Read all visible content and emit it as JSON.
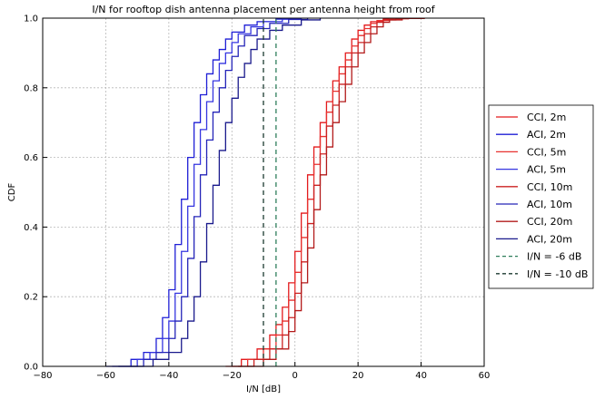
{
  "chart_data": {
    "type": "line",
    "title": "I/N for rooftop dish antenna placement per antenna height from roof",
    "xlabel": "I/N [dB]",
    "ylabel": "CDF",
    "xlim": [
      -80,
      60
    ],
    "ylim": [
      0,
      1.0
    ],
    "xticks": [
      -80,
      -60,
      -40,
      -20,
      0,
      20,
      40,
      60
    ],
    "yticks": [
      0.0,
      0.2,
      0.4,
      0.6,
      0.8,
      1.0
    ],
    "xtick_labels": [
      "−80",
      "−60",
      "−40",
      "−20",
      "0",
      "20",
      "40",
      "60"
    ],
    "ytick_labels": [
      "0.0",
      "0.2",
      "0.4",
      "0.6",
      "0.8",
      "1.0"
    ],
    "grid": true,
    "legend_position": "right-outside",
    "series": [
      {
        "name": "CCI, 2m",
        "color": "#e31a1c",
        "dash": false,
        "x": [
          -22,
          -17,
          -12,
          -8,
          -6,
          -4,
          -2,
          0,
          2,
          4,
          6,
          8,
          10,
          12,
          14,
          16,
          18,
          20,
          22,
          24,
          28,
          34
        ],
        "y": [
          0.0,
          0.02,
          0.05,
          0.09,
          0.12,
          0.17,
          0.24,
          0.33,
          0.44,
          0.55,
          0.63,
          0.7,
          0.76,
          0.82,
          0.86,
          0.9,
          0.94,
          0.965,
          0.98,
          0.99,
          0.997,
          1.0
        ]
      },
      {
        "name": "ACI, 2m",
        "color": "#1f1fd6",
        "dash": false,
        "x": [
          -60,
          -52,
          -48,
          -44,
          -42,
          -40,
          -38,
          -36,
          -34,
          -32,
          -30,
          -28,
          -26,
          -24,
          -22,
          -20,
          -16,
          -12,
          -6,
          0
        ],
        "y": [
          0.0,
          0.02,
          0.04,
          0.08,
          0.14,
          0.22,
          0.35,
          0.48,
          0.6,
          0.7,
          0.78,
          0.84,
          0.88,
          0.91,
          0.94,
          0.96,
          0.98,
          0.99,
          0.997,
          1.0
        ]
      },
      {
        "name": "CCI, 5m",
        "color": "#e8312f",
        "dash": false,
        "x": [
          -20,
          -15,
          -10,
          -6,
          -4,
          -2,
          0,
          2,
          4,
          6,
          8,
          10,
          12,
          14,
          16,
          18,
          20,
          22,
          24,
          26,
          30,
          36
        ],
        "y": [
          0.0,
          0.02,
          0.05,
          0.09,
          0.13,
          0.19,
          0.27,
          0.37,
          0.48,
          0.58,
          0.66,
          0.73,
          0.79,
          0.84,
          0.88,
          0.92,
          0.95,
          0.97,
          0.985,
          0.993,
          0.998,
          1.0
        ]
      },
      {
        "name": "ACI, 5m",
        "color": "#3535e0",
        "dash": false,
        "x": [
          -58,
          -50,
          -46,
          -42,
          -40,
          -38,
          -36,
          -34,
          -32,
          -30,
          -28,
          -26,
          -24,
          -22,
          -20,
          -18,
          -14,
          -10,
          -4,
          2
        ],
        "y": [
          0.0,
          0.02,
          0.04,
          0.08,
          0.13,
          0.21,
          0.33,
          0.46,
          0.58,
          0.68,
          0.76,
          0.82,
          0.87,
          0.9,
          0.93,
          0.955,
          0.975,
          0.99,
          0.997,
          1.0
        ]
      },
      {
        "name": "CCI, 10m",
        "color": "#cc2222",
        "dash": false,
        "x": [
          -18,
          -13,
          -8,
          -4,
          -2,
          0,
          2,
          4,
          6,
          8,
          10,
          12,
          14,
          16,
          18,
          20,
          22,
          24,
          26,
          28,
          32,
          38
        ],
        "y": [
          0.0,
          0.02,
          0.05,
          0.09,
          0.14,
          0.21,
          0.3,
          0.41,
          0.52,
          0.61,
          0.69,
          0.75,
          0.81,
          0.86,
          0.9,
          0.93,
          0.955,
          0.975,
          0.988,
          0.995,
          0.999,
          1.0
        ]
      },
      {
        "name": "ACI, 10m",
        "color": "#2424b8",
        "dash": false,
        "x": [
          -56,
          -48,
          -44,
          -40,
          -38,
          -36,
          -34,
          -32,
          -30,
          -28,
          -26,
          -24,
          -22,
          -20,
          -18,
          -16,
          -12,
          -8,
          -2,
          4
        ],
        "y": [
          0.0,
          0.02,
          0.04,
          0.08,
          0.13,
          0.2,
          0.31,
          0.43,
          0.55,
          0.65,
          0.73,
          0.8,
          0.85,
          0.89,
          0.92,
          0.95,
          0.97,
          0.985,
          0.996,
          1.0
        ]
      },
      {
        "name": "CCI, 20m",
        "color": "#b31b1b",
        "dash": false,
        "x": [
          -15,
          -10,
          -6,
          -2,
          0,
          2,
          4,
          6,
          8,
          10,
          12,
          14,
          16,
          18,
          20,
          22,
          24,
          26,
          28,
          30,
          34,
          41
        ],
        "y": [
          0.0,
          0.02,
          0.05,
          0.1,
          0.16,
          0.24,
          0.34,
          0.45,
          0.55,
          0.63,
          0.7,
          0.76,
          0.81,
          0.86,
          0.9,
          0.93,
          0.955,
          0.975,
          0.988,
          0.995,
          0.999,
          1.0
        ]
      },
      {
        "name": "ACI, 20m",
        "color": "#1a1a8c",
        "dash": false,
        "x": [
          -52,
          -45,
          -40,
          -36,
          -34,
          -32,
          -30,
          -28,
          -26,
          -24,
          -22,
          -20,
          -18,
          -16,
          -14,
          -12,
          -8,
          -4,
          2,
          8
        ],
        "y": [
          0.0,
          0.02,
          0.04,
          0.08,
          0.13,
          0.2,
          0.3,
          0.41,
          0.52,
          0.62,
          0.7,
          0.77,
          0.83,
          0.87,
          0.91,
          0.94,
          0.965,
          0.98,
          0.995,
          1.0
        ]
      },
      {
        "name": "I/N = -6 dB",
        "color": "#2e7d5b",
        "dash": true,
        "x": [
          -6,
          -6
        ],
        "y": [
          0.0,
          1.0
        ]
      },
      {
        "name": "I/N = -10 dB",
        "color": "#1b3a2f",
        "dash": true,
        "x": [
          -10,
          -10
        ],
        "y": [
          0.0,
          1.0
        ]
      }
    ]
  }
}
